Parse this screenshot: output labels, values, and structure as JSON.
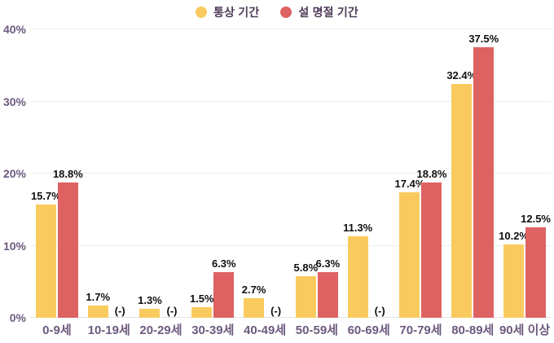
{
  "legend": {
    "items": [
      {
        "label": "통상 기간",
        "color": "#F9CB5F"
      },
      {
        "label": "설 명절 기간",
        "color": "#DE6262"
      }
    ]
  },
  "colors": {
    "bar_yellow": "#F9CB5F",
    "bar_red": "#DE6262",
    "grid": "#ededed",
    "axis_text": "#6d5a7e",
    "data_label": "#101010",
    "legend_text": "#4e3a58",
    "background": "#ffffff"
  },
  "chart_data": {
    "type": "bar",
    "title": "",
    "xlabel": "",
    "ylabel": "",
    "categories": [
      "0-9세",
      "10-19세",
      "20-29세",
      "30-39세",
      "40-49세",
      "50-59세",
      "60-69세",
      "70-79세",
      "80-89세",
      "90세 이상"
    ],
    "series": [
      {
        "name": "통상 기간",
        "color": "#F9CB5F",
        "values": [
          15.7,
          1.7,
          1.3,
          1.5,
          2.7,
          5.8,
          11.3,
          17.4,
          32.4,
          10.2
        ],
        "labels": [
          "15.7%",
          "1.7%",
          "1.3%",
          "1.5%",
          "2.7%",
          "5.8%",
          "11.3%",
          "17.4%",
          "32.4%",
          "10.2%"
        ]
      },
      {
        "name": "설 명절 기간",
        "color": "#DE6262",
        "values": [
          18.8,
          null,
          null,
          6.3,
          null,
          6.3,
          null,
          18.8,
          37.5,
          12.5
        ],
        "labels": [
          "18.8%",
          "(-)",
          "(-)",
          "6.3%",
          "(-)",
          "6.3%",
          "(-)",
          "18.8%",
          "37.5%",
          "12.5%"
        ]
      }
    ],
    "ylim": [
      0,
      40
    ],
    "yticks": [
      "0%",
      "10%",
      "20%",
      "30%",
      "40%"
    ],
    "grid": true,
    "legend_position": "top"
  }
}
